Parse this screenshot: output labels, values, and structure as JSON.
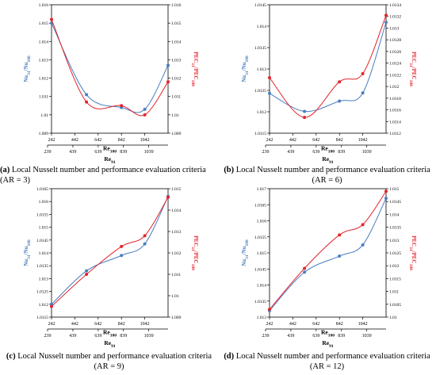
{
  "figure": {
    "panels": [
      {
        "caption_label": "(a)",
        "caption_text": "Local Nusselt number and performance evaluation criteria (AR = 3)",
        "chart_data": {
          "type": "line",
          "x_bottom_ticks": [
            "242",
            "442",
            "642",
            "842",
            "1042"
          ],
          "x_bottom_label": "Re",
          "x_bottom_label_sub": "100",
          "x_top_ticks": [
            "239",
            "439",
            "639",
            "839",
            "1039"
          ],
          "x_top_label": "Re",
          "x_top_label_sub": "91",
          "y_left_label": "Nu",
          "y_left_label_sub1": "31",
          "y_left_label_sub2": "100",
          "y_left_ticks": [
            "1.009",
            "1.01",
            "1.011",
            "1.012",
            "1.013",
            "1.014",
            "1.015",
            "1.016"
          ],
          "y_left_range": [
            1.009,
            1.016
          ],
          "y_right_label": "PEC",
          "y_right_label_sub1": "31",
          "y_right_label_sub2": "100",
          "y_right_ticks": [
            "1.009",
            "1.01",
            "1.011",
            "1.012",
            "1.013",
            "1.014",
            "1.015",
            "1.016"
          ],
          "y_right_range": [
            1.009,
            1.016
          ],
          "series": [
            {
              "axis": "left",
              "color": "#4a7ec2",
              "x": [
                242,
                542,
                842,
                1042,
                1242
              ],
              "y": [
                1.015,
                1.0111,
                1.0104,
                1.0103,
                1.0127
              ]
            },
            {
              "axis": "right",
              "color": "#e3242b",
              "x": [
                242,
                542,
                842,
                1042,
                1242
              ],
              "y": [
                1.0152,
                1.0107,
                1.0105,
                1.01,
                1.0118
              ]
            }
          ]
        }
      },
      {
        "caption_label": "(b)",
        "caption_text": "Local Nusselt number and performance evaluation criteria (AR = 6)",
        "chart_data": {
          "type": "line",
          "x_bottom_ticks": [
            "242",
            "442",
            "642",
            "842",
            "1042"
          ],
          "x_bottom_label": "Re",
          "x_bottom_label_sub": "100",
          "x_top_ticks": [
            "239",
            "439",
            "639",
            "839",
            "1039"
          ],
          "x_top_label": "Re",
          "x_top_label_sub": "91",
          "y_left_label": "Nu",
          "y_left_label_sub1": "31",
          "y_left_label_sub2": "100",
          "y_left_ticks": [
            "1.0115",
            "1.012",
            "1.0125",
            "1.013",
            "1.0135",
            "1.014",
            "1.0145"
          ],
          "y_left_range": [
            1.0115,
            1.0145
          ],
          "y_right_label": "PEC",
          "y_right_label_sub1": "31",
          "y_right_label_sub2": "100",
          "y_right_ticks": [
            "1.0112",
            "1.0114",
            "1.0116",
            "1.0118",
            "1.012",
            "1.0122",
            "1.0124",
            "1.0126",
            "1.0128",
            "1.013",
            "1.0132",
            "1.0134"
          ],
          "y_right_range": [
            1.0112,
            1.0134
          ],
          "series": [
            {
              "axis": "left",
              "color": "#4a7ec2",
              "x": [
                242,
                542,
                842,
                1042,
                1242
              ],
              "y": [
                1.01243,
                1.01201,
                1.01225,
                1.01244,
                1.01409
              ]
            },
            {
              "axis": "right",
              "color": "#e3242b",
              "x": [
                242,
                542,
                842,
                1042,
                1242
              ],
              "y": [
                1.01215,
                1.01147,
                1.01208,
                1.01222,
                1.01322
              ]
            }
          ]
        }
      },
      {
        "caption_label": "(c)",
        "caption_text": "Local Nusselt number and performance evaluation criteria (AR = 9)",
        "chart_data": {
          "type": "line",
          "x_bottom_ticks": [
            "242",
            "442",
            "642",
            "842",
            "1042"
          ],
          "x_bottom_label": "Re",
          "x_bottom_label_sub": "100",
          "x_top_ticks": [
            "239",
            "439",
            "639",
            "839",
            "1039"
          ],
          "x_top_label": "Re",
          "x_top_label_sub": "91",
          "y_left_label": "Nu",
          "y_left_label_sub1": "31",
          "y_left_label_sub2": "100",
          "y_left_ticks": [
            "1.0115",
            "1.012",
            "1.0125",
            "1.013",
            "1.0135",
            "1.014",
            "1.0145",
            "1.015",
            "1.0155",
            "1.016",
            "1.0165"
          ],
          "y_left_range": [
            1.0115,
            1.0165
          ],
          "y_right_label": "PEC",
          "y_right_label_sub1": "31",
          "y_right_label_sub2": "100",
          "y_right_ticks": [
            "1.009",
            "1.01",
            "1.011",
            "1.012",
            "1.013",
            "1.014",
            "1.015"
          ],
          "y_right_range": [
            1.009,
            1.015
          ],
          "series": [
            {
              "axis": "left",
              "color": "#4a7ec2",
              "x": [
                242,
                542,
                842,
                1042,
                1242
              ],
              "y": [
                1.012,
                1.0133,
                1.0139,
                1.01435,
                1.0162
              ]
            },
            {
              "axis": "right",
              "color": "#e3242b",
              "x": [
                242,
                542,
                842,
                1042,
                1242
              ],
              "y": [
                1.0095,
                1.011,
                1.0123,
                1.0128,
                1.0146
              ]
            }
          ]
        }
      },
      {
        "caption_label": "(d)",
        "caption_text": "Local Nusselt number and performance evaluation criteria (AR = 12)",
        "chart_data": {
          "type": "line",
          "x_bottom_ticks": [
            "242",
            "442",
            "642",
            "842",
            "1042"
          ],
          "x_bottom_label": "Re",
          "x_bottom_label_sub": "100",
          "x_top_ticks": [
            "239",
            "439",
            "639",
            "839",
            "1039"
          ],
          "x_top_label": "Re",
          "x_top_label_sub": "91",
          "y_left_label": "Nu",
          "y_left_label_sub1": "31",
          "y_left_label_sub2": "100",
          "y_left_ticks": [
            "1.013",
            "1.0135",
            "1.014",
            "1.0145",
            "1.015",
            "1.0155",
            "1.016",
            "1.0165",
            "1.017"
          ],
          "y_left_range": [
            1.013,
            1.017
          ],
          "y_right_label": "PEC",
          "y_right_label_sub1": "31",
          "y_right_label_sub2": "100",
          "y_right_ticks": [
            "1.01",
            "1.0105",
            "1.011",
            "1.0115",
            "1.012",
            "1.0125",
            "1.013",
            "1.0135",
            "1.014",
            "1.0145",
            "1.015"
          ],
          "y_right_range": [
            1.01,
            1.015
          ],
          "series": [
            {
              "axis": "left",
              "color": "#4a7ec2",
              "x": [
                242,
                542,
                842,
                1042,
                1242
              ],
              "y": [
                1.0132,
                1.0144,
                1.0149,
                1.01525,
                1.0167
              ]
            },
            {
              "axis": "right",
              "color": "#e3242b",
              "x": [
                242,
                542,
                842,
                1042,
                1242
              ],
              "y": [
                1.0103,
                1.0119,
                1.0132,
                1.0136,
                1.0149
              ]
            }
          ]
        }
      }
    ]
  }
}
